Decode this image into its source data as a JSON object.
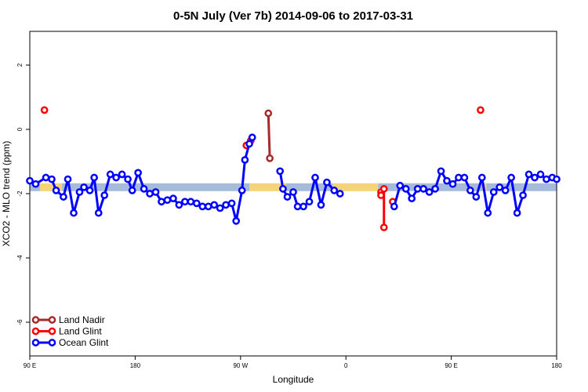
{
  "chart_data": {
    "type": "line",
    "title": "0-5N July (Ver 7b)   2014-09-06 to 2017-03-31",
    "xlabel": "Longitude",
    "ylabel": "XCO2 - MLO trend (ppm)",
    "xlim": [
      90,
      450
    ],
    "ylim": [
      -7,
      3
    ],
    "x_ticks": [
      {
        "value": 90,
        "label": "90 E"
      },
      {
        "value": 162,
        "label": "180"
      },
      {
        "value": 234,
        "label": "90 W"
      },
      {
        "value": 306,
        "label": "0"
      },
      {
        "value": 378,
        "label": "90 E"
      },
      {
        "value": 450,
        "label": "180"
      }
    ],
    "y_ticks": [
      {
        "value": 2,
        "label": "2"
      },
      {
        "value": 0,
        "label": "0"
      },
      {
        "value": -2,
        "label": "-2"
      },
      {
        "value": -4,
        "label": "-4"
      },
      {
        "value": -6,
        "label": "-6"
      }
    ],
    "reference_band": {
      "y_center": -1.8,
      "land_color": "#f5d478",
      "ocean_color": "#a6bbd9"
    },
    "band_segments": [
      {
        "x0": 90,
        "x1": 97,
        "surface": "ocean"
      },
      {
        "x0": 97,
        "x1": 112,
        "surface": "land"
      },
      {
        "x0": 112,
        "x1": 240,
        "surface": "ocean"
      },
      {
        "x0": 240,
        "x1": 265,
        "surface": "land"
      },
      {
        "x0": 265,
        "x1": 297,
        "surface": "ocean"
      },
      {
        "x0": 297,
        "x1": 328,
        "surface": "land"
      },
      {
        "x0": 328,
        "x1": 400,
        "surface": "ocean"
      },
      {
        "x0": 400,
        "x1": 402,
        "surface": "land"
      },
      {
        "x0": 402,
        "x1": 450,
        "surface": "ocean"
      }
    ],
    "series": [
      {
        "name": "Land Nadir",
        "color": "#a52a2a",
        "segments": [
          [
            [
              253,
              0.5
            ],
            [
              254,
              -0.9
            ]
          ]
        ]
      },
      {
        "name": "Land Glint",
        "color": "#ff0000",
        "segments": [
          [
            [
              100,
              0.6
            ]
          ],
          [
            [
              238,
              -0.5
            ],
            [
              241,
              -0.35
            ]
          ],
          [
            [
              330,
              -1.95
            ],
            [
              330,
              -2.05
            ]
          ],
          [
            [
              332,
              -1.85
            ],
            [
              332,
              -3.05
            ]
          ],
          [
            [
              338,
              -2.25
            ]
          ],
          [
            [
              398,
              0.6
            ]
          ]
        ]
      },
      {
        "name": "Ocean Glint",
        "color": "#0000ff",
        "segments": [
          [
            [
              90,
              -1.6
            ],
            [
              94,
              -1.7
            ],
            [
              101,
              -1.5
            ],
            [
              105,
              -1.55
            ],
            [
              108,
              -1.9
            ],
            [
              113,
              -2.1
            ],
            [
              116,
              -1.55
            ],
            [
              120,
              -2.6
            ],
            [
              124,
              -1.95
            ],
            [
              127,
              -1.8
            ],
            [
              131,
              -1.9
            ],
            [
              134,
              -1.5
            ],
            [
              137,
              -2.6
            ],
            [
              141,
              -2.05
            ],
            [
              145,
              -1.4
            ],
            [
              149,
              -1.5
            ],
            [
              153,
              -1.4
            ],
            [
              157,
              -1.55
            ],
            [
              160,
              -1.9
            ],
            [
              164,
              -1.35
            ],
            [
              168,
              -1.85
            ],
            [
              172,
              -2.0
            ],
            [
              176,
              -1.95
            ],
            [
              180,
              -2.25
            ],
            [
              184,
              -2.2
            ],
            [
              188,
              -2.15
            ],
            [
              192,
              -2.35
            ],
            [
              196,
              -2.25
            ],
            [
              200,
              -2.25
            ],
            [
              204,
              -2.3
            ],
            [
              208,
              -2.4
            ],
            [
              212,
              -2.4
            ],
            [
              216,
              -2.35
            ],
            [
              220,
              -2.45
            ],
            [
              224,
              -2.35
            ],
            [
              228,
              -2.3
            ],
            [
              231,
              -2.85
            ],
            [
              235,
              -1.9
            ],
            [
              237,
              -0.95
            ],
            [
              240,
              -0.45
            ],
            [
              242,
              -0.25
            ]
          ],
          [
            [
              261,
              -1.3
            ],
            [
              263,
              -1.85
            ],
            [
              266,
              -2.1
            ],
            [
              270,
              -1.95
            ],
            [
              273,
              -2.4
            ],
            [
              277,
              -2.4
            ],
            [
              281,
              -2.25
            ],
            [
              285,
              -1.5
            ],
            [
              289,
              -2.35
            ],
            [
              293,
              -1.65
            ],
            [
              298,
              -1.9
            ],
            [
              302,
              -2.0
            ]
          ],
          [
            [
              339,
              -2.4
            ],
            [
              343,
              -1.75
            ],
            [
              347,
              -1.85
            ],
            [
              351,
              -2.15
            ],
            [
              355,
              -1.85
            ],
            [
              359,
              -1.85
            ],
            [
              363,
              -1.95
            ],
            [
              367,
              -1.85
            ],
            [
              371,
              -1.3
            ],
            [
              375,
              -1.6
            ],
            [
              379,
              -1.7
            ],
            [
              383,
              -1.5
            ],
            [
              387,
              -1.5
            ],
            [
              391,
              -1.9
            ],
            [
              395,
              -2.1
            ],
            [
              399,
              -1.5
            ],
            [
              403,
              -2.6
            ],
            [
              407,
              -1.95
            ],
            [
              411,
              -1.8
            ],
            [
              415,
              -1.9
            ],
            [
              419,
              -1.5
            ],
            [
              423,
              -2.6
            ],
            [
              427,
              -2.05
            ],
            [
              431,
              -1.4
            ],
            [
              435,
              -1.5
            ],
            [
              439,
              -1.4
            ],
            [
              443,
              -1.55
            ],
            [
              447,
              -1.5
            ],
            [
              450,
              -1.55
            ]
          ]
        ]
      }
    ],
    "legend": {
      "position": "bottom-left",
      "items": [
        {
          "label": "Land Nadir",
          "color": "#a52a2a"
        },
        {
          "label": "Land Glint",
          "color": "#ff0000"
        },
        {
          "label": "Ocean Glint",
          "color": "#0000ff"
        }
      ]
    }
  }
}
